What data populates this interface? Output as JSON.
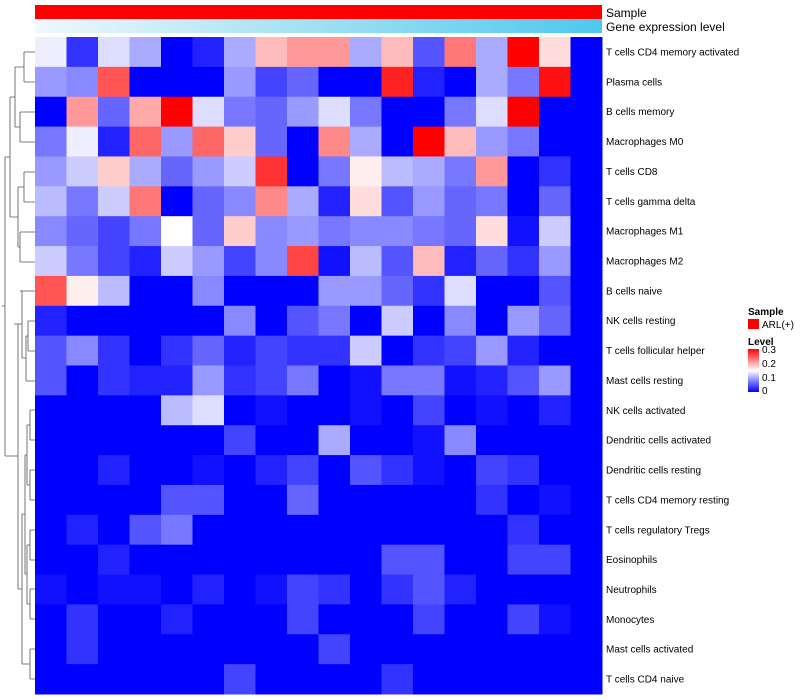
{
  "chart_data": {
    "type": "heatmap",
    "annotations": {
      "sample_label": "Sample",
      "gene_expression_label": "Gene expression level"
    },
    "legend": {
      "sample_title": "Sample",
      "sample_entry": "ARL(+)",
      "level_title": "Level",
      "level_ticks": [
        "0.3",
        "0.2",
        "0.1",
        "0"
      ]
    },
    "colors": {
      "sample_bar": "#ff0000",
      "gene_low": "#f0f8fb",
      "gene_high": "#4ec8ee",
      "low": "#0000ff",
      "mid": "#ffffff",
      "high": "#ff0000"
    },
    "scale": {
      "min": 0,
      "mid": 0.15,
      "max": 0.3
    },
    "columns": 18,
    "rows": [
      "T cells CD4 memory activated",
      "Plasma cells",
      "B cells memory",
      "Macrophages M0",
      "T cells CD8",
      "T cells gamma delta",
      "Macrophages M1",
      "Macrophages M2",
      "B cells naive",
      "NK cells resting",
      "T cells follicular helper",
      "Mast cells resting",
      "NK cells activated",
      "Dendritic cells activated",
      "Dendritic cells resting",
      "T cells CD4 memory resting",
      "T cells regulatory  Tregs",
      "Eosinophils",
      "Neutrophils",
      "Monocytes",
      "Mast cells activated",
      "T cells CD4 naive"
    ],
    "values": [
      [
        0.14,
        0.03,
        0.13,
        0.1,
        0.0,
        0.02,
        0.1,
        0.19,
        0.21,
        0.21,
        0.1,
        0.19,
        0.05,
        0.23,
        0.1,
        0.3,
        0.17,
        0.0
      ],
      [
        0.09,
        0.08,
        0.25,
        0.0,
        0.0,
        0.0,
        0.09,
        0.04,
        0.06,
        0.0,
        0.0,
        0.28,
        0.02,
        0.0,
        0.1,
        0.07,
        0.29,
        0.0
      ],
      [
        0.0,
        0.21,
        0.06,
        0.2,
        0.3,
        0.13,
        0.07,
        0.06,
        0.09,
        0.13,
        0.07,
        0.0,
        0.0,
        0.07,
        0.13,
        0.3,
        0.0,
        0.0
      ],
      [
        0.07,
        0.14,
        0.02,
        0.24,
        0.09,
        0.24,
        0.18,
        0.06,
        0.0,
        0.22,
        0.1,
        0.0,
        0.3,
        0.19,
        0.09,
        0.07,
        0.0,
        0.0
      ],
      [
        0.09,
        0.12,
        0.18,
        0.1,
        0.06,
        0.09,
        0.12,
        0.27,
        0.0,
        0.07,
        0.16,
        0.11,
        0.1,
        0.07,
        0.21,
        0.0,
        0.03,
        0.0
      ],
      [
        0.11,
        0.07,
        0.12,
        0.23,
        0.0,
        0.06,
        0.08,
        0.22,
        0.1,
        0.02,
        0.17,
        0.05,
        0.09,
        0.06,
        0.07,
        0.0,
        0.06,
        0.0
      ],
      [
        0.08,
        0.06,
        0.04,
        0.07,
        0.15,
        0.06,
        0.18,
        0.08,
        0.09,
        0.07,
        0.08,
        0.08,
        0.07,
        0.06,
        0.17,
        0.01,
        0.12,
        0.0
      ],
      [
        0.12,
        0.07,
        0.04,
        0.02,
        0.12,
        0.09,
        0.04,
        0.08,
        0.26,
        0.01,
        0.11,
        0.05,
        0.19,
        0.02,
        0.06,
        0.03,
        0.09,
        0.0
      ],
      [
        0.25,
        0.16,
        0.11,
        0.0,
        0.0,
        0.08,
        0.0,
        0.0,
        0.0,
        0.09,
        0.09,
        0.06,
        0.03,
        0.13,
        0.0,
        0.0,
        0.05,
        0.0
      ],
      [
        0.02,
        0.0,
        0.0,
        0.0,
        0.0,
        0.0,
        0.08,
        0.0,
        0.05,
        0.07,
        0.0,
        0.12,
        0.0,
        0.08,
        0.0,
        0.09,
        0.06,
        0.0
      ],
      [
        0.05,
        0.08,
        0.03,
        0.0,
        0.03,
        0.06,
        0.02,
        0.04,
        0.03,
        0.03,
        0.12,
        0.0,
        0.03,
        0.04,
        0.09,
        0.02,
        0.0,
        0.0
      ],
      [
        0.05,
        0.0,
        0.03,
        0.02,
        0.02,
        0.09,
        0.03,
        0.04,
        0.07,
        0.0,
        0.01,
        0.07,
        0.07,
        0.01,
        0.02,
        0.05,
        0.09,
        0.0
      ],
      [
        0.0,
        0.0,
        0.0,
        0.0,
        0.11,
        0.13,
        0.0,
        0.01,
        0.0,
        0.0,
        0.01,
        0.0,
        0.04,
        0.0,
        0.01,
        0.0,
        0.02,
        0.0
      ],
      [
        0.0,
        0.0,
        0.0,
        0.0,
        0.0,
        0.0,
        0.04,
        0.0,
        0.0,
        0.1,
        0.0,
        0.0,
        0.01,
        0.08,
        0.0,
        0.0,
        0.0,
        0.0
      ],
      [
        0.0,
        0.0,
        0.02,
        0.0,
        0.0,
        0.01,
        0.0,
        0.02,
        0.04,
        0.0,
        0.05,
        0.03,
        0.01,
        0.0,
        0.04,
        0.03,
        0.0,
        0.0
      ],
      [
        0.0,
        0.0,
        0.0,
        0.0,
        0.05,
        0.05,
        0.0,
        0.0,
        0.06,
        0.0,
        0.0,
        0.0,
        0.0,
        0.0,
        0.03,
        0.0,
        0.01,
        0.0
      ],
      [
        0.0,
        0.02,
        0.0,
        0.05,
        0.07,
        0.0,
        0.0,
        0.0,
        0.0,
        0.0,
        0.0,
        0.0,
        0.0,
        0.0,
        0.0,
        0.03,
        0.0,
        0.0
      ],
      [
        0.0,
        0.0,
        0.02,
        0.0,
        0.0,
        0.0,
        0.0,
        0.0,
        0.0,
        0.0,
        0.0,
        0.05,
        0.05,
        0.0,
        0.0,
        0.04,
        0.04,
        0.0
      ],
      [
        0.01,
        0.0,
        0.01,
        0.01,
        0.0,
        0.02,
        0.0,
        0.01,
        0.04,
        0.03,
        0.0,
        0.03,
        0.05,
        0.02,
        0.0,
        0.0,
        0.0,
        0.0
      ],
      [
        0.0,
        0.03,
        0.0,
        0.0,
        0.02,
        0.0,
        0.0,
        0.0,
        0.04,
        0.0,
        0.0,
        0.0,
        0.04,
        0.0,
        0.0,
        0.04,
        0.01,
        0.0
      ],
      [
        0.0,
        0.03,
        0.0,
        0.0,
        0.0,
        0.0,
        0.0,
        0.0,
        0.0,
        0.04,
        0.0,
        0.0,
        0.0,
        0.0,
        0.0,
        0.0,
        0.0,
        0.0
      ],
      [
        0.0,
        0.0,
        0.0,
        0.0,
        0.0,
        0.0,
        0.04,
        0.0,
        0.0,
        0.0,
        0.0,
        0.03,
        0.0,
        0.0,
        0.0,
        0.0,
        0.0,
        0.0
      ]
    ]
  }
}
